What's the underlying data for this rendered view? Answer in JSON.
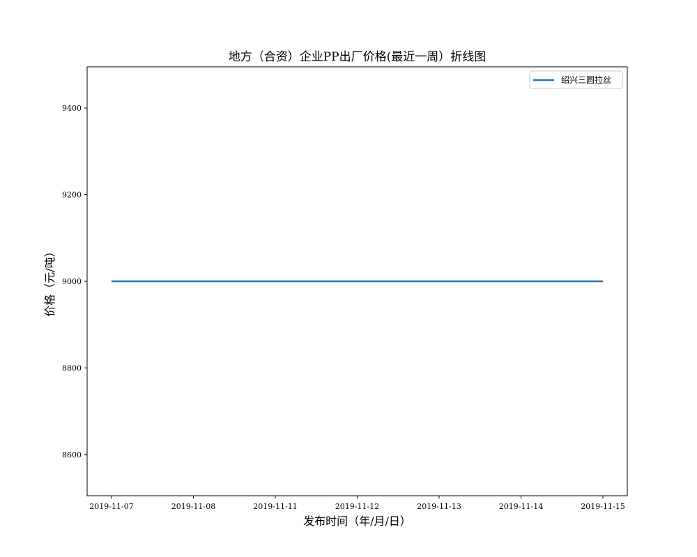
{
  "chart_data": {
    "type": "line",
    "title": "地方（合资）企业PP出厂价格(最近一周）折线图",
    "xlabel": "发布时间（年/月/日）",
    "ylabel": "价格（元/吨）",
    "categories": [
      "2019-11-07",
      "2019-11-08",
      "2019-11-11",
      "2019-11-12",
      "2019-11-13",
      "2019-11-14",
      "2019-11-15"
    ],
    "series": [
      {
        "name": "绍兴三圆拉丝",
        "values": [
          9000,
          9000,
          9000,
          9000,
          9000,
          9000,
          9000
        ],
        "color": "#1f77b4"
      }
    ],
    "ylim": [
      8505,
      9495
    ],
    "yticks": [
      8600,
      8800,
      9000,
      9200,
      9400
    ],
    "grid": false,
    "legend_position": "upper right"
  }
}
